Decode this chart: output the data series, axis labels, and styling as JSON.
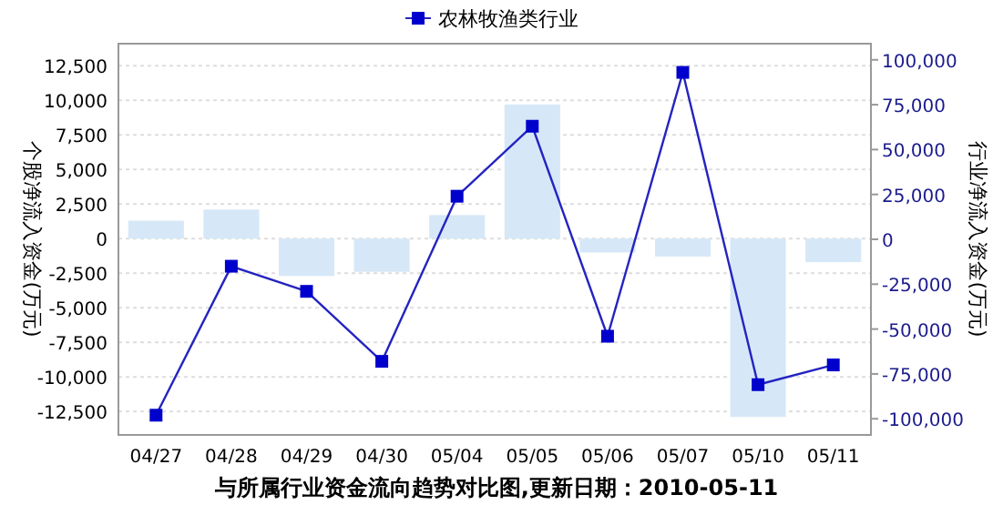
{
  "chart_data": {
    "type": "bar",
    "categories": [
      "04/27",
      "04/28",
      "04/29",
      "04/30",
      "05/04",
      "05/05",
      "05/06",
      "05/07",
      "05/10",
      "05/11"
    ],
    "series": [
      {
        "color": "#d6e8f7",
        "values": [
          1300,
          2100,
          -2700,
          -2400,
          1700,
          9700,
          -1000,
          -1300,
          -12900,
          -1700
        ]
      },
      {
        "type": "line",
        "name": "农林牧渔类行业",
        "axis": "y2",
        "color": "#2424c0",
        "marker": "square",
        "values": [
          -98000,
          -15000,
          -29000,
          -68000,
          24000,
          63000,
          -54000,
          93000,
          -81000,
          -70000
        ]
      }
    ],
    "ylabel": "个股净流入资金(万元)",
    "y2label": "行业净流入资金(万元)",
    "ylim": [
      -14200,
      14100
    ],
    "yticks": [
      {
        "value": -12500,
        "label": "-12,500"
      },
      {
        "value": -10000,
        "label": "-10,000"
      },
      {
        "value": -7500,
        "label": "-7,500"
      },
      {
        "value": -5000,
        "label": "-5,000"
      },
      {
        "value": -2500,
        "label": "-2,500"
      },
      0,
      {
        "value": 2500,
        "label": "2,500"
      },
      {
        "value": 5000,
        "label": "5,000"
      },
      {
        "value": 7500,
        "label": "7,500"
      },
      {
        "value": 10000,
        "label": "10,000"
      },
      {
        "value": 12500,
        "label": "12,500"
      }
    ],
    "y2lim": [
      -109000,
      109000
    ],
    "y2ticks": [
      {
        "value": -100000,
        "label": "-100,000"
      },
      {
        "value": -75000,
        "label": "-75,000"
      },
      {
        "value": -50000,
        "label": "-50,000"
      },
      {
        "value": -25000,
        "label": "-25,000"
      },
      0,
      {
        "value": 25000,
        "label": "25,000"
      },
      {
        "value": 50000,
        "label": "50,000"
      },
      {
        "value": 75000,
        "label": "75,000"
      },
      {
        "value": 100000,
        "label": "100,000"
      }
    ],
    "grid": "y",
    "legend": "top",
    "annotations": [
      "与所属行业资金流向趋势对比图,更新日期：2010-05-11"
    ]
  }
}
